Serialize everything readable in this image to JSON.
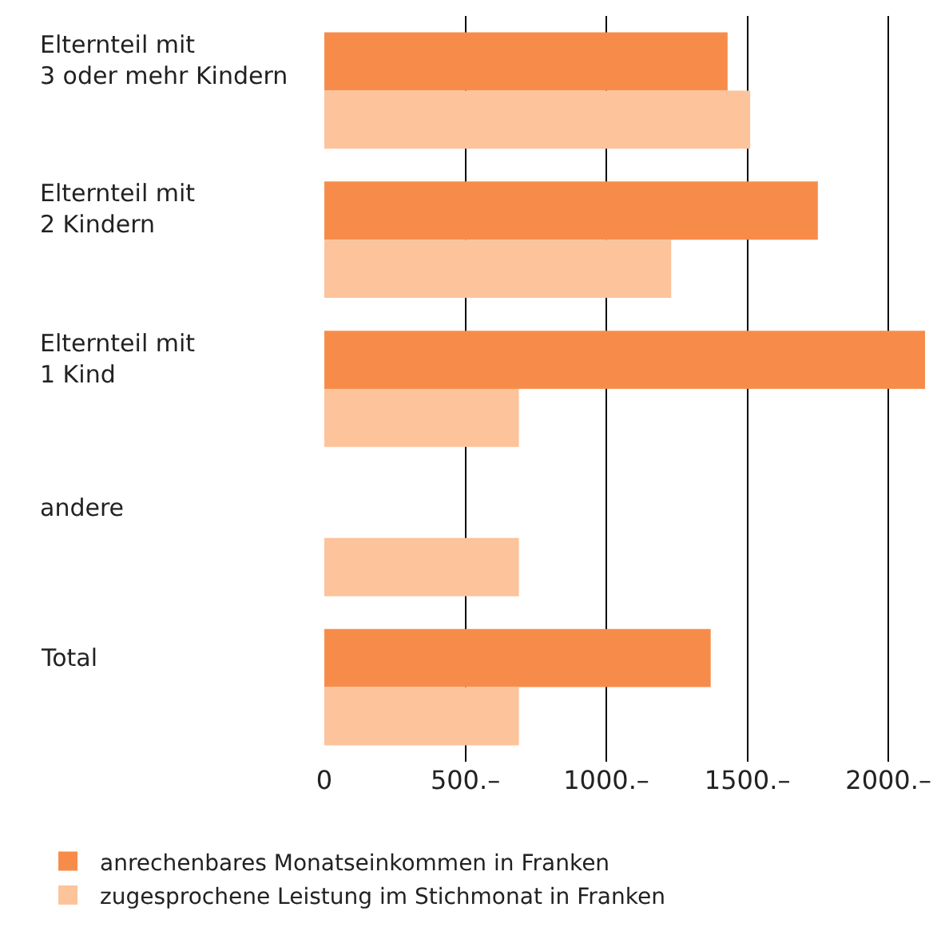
{
  "chart_data": {
    "type": "bar",
    "orientation": "horizontal",
    "categories": [
      "Elternteil mit\n3 oder mehr Kindern",
      "Elternteil mit\n2 Kindern",
      "Elternteil mit\n1 Kind",
      "andere",
      "Total"
    ],
    "series": [
      {
        "name": "anrechenbares Monatseinkommen in Franken",
        "color": "#f78c4a",
        "values": [
          1430,
          1750,
          2130,
          null,
          1370
        ]
      },
      {
        "name": "zugesprochene Leistung im Stichmonat in Franken",
        "color": "#fdc39b",
        "values": [
          1510,
          1230,
          690,
          690,
          690
        ]
      }
    ],
    "xlim": [
      0,
      2130
    ],
    "xticks": [
      0,
      {
        "value": 500,
        "label": "500.–"
      },
      {
        "value": 1000,
        "label": "1000.–"
      },
      {
        "value": 1500,
        "label": "1500.–"
      },
      {
        "value": 2000,
        "label": "2000.–"
      }
    ],
    "grid": "x",
    "legend": "bottom"
  }
}
